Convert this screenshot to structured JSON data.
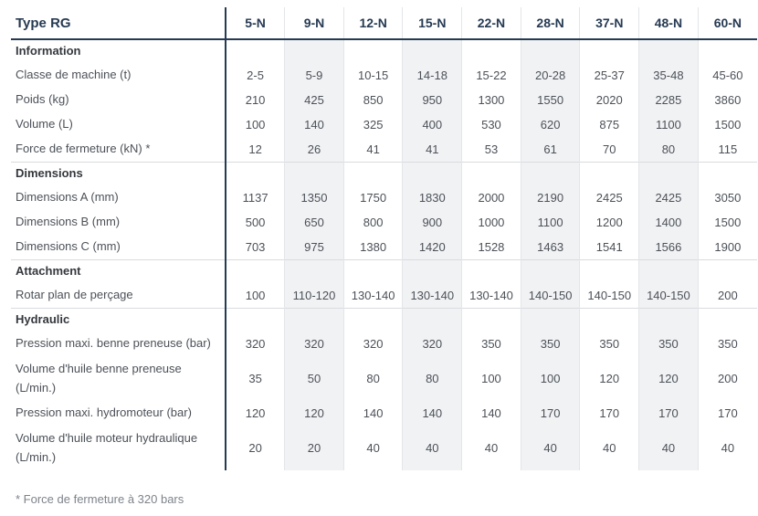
{
  "colors": {
    "accent_navy": "#263a53",
    "shaded_column_bg": "#f1f2f4",
    "body_text": "#4c5158",
    "footnote_text": "#7e838a"
  },
  "table": {
    "header": {
      "label": "Type RG",
      "columns": [
        "5-N",
        "9-N",
        "12-N",
        "15-N",
        "22-N",
        "28-N",
        "37-N",
        "48-N",
        "60-N"
      ]
    },
    "shaded_columns": [
      1,
      3,
      5,
      7
    ],
    "sections": [
      {
        "title": "Information",
        "rows": [
          {
            "label": "Classe de machine (t)",
            "values": [
              "2-5",
              "5-9",
              "10-15",
              "14-18",
              "15-22",
              "20-28",
              "25-37",
              "35-48",
              "45-60"
            ]
          },
          {
            "label": "Poids (kg)",
            "values": [
              "210",
              "425",
              "850",
              "950",
              "1300",
              "1550",
              "2020",
              "2285",
              "3860"
            ]
          },
          {
            "label": "Volume (L)",
            "values": [
              "100",
              "140",
              "325",
              "400",
              "530",
              "620",
              "875",
              "1100",
              "1500"
            ]
          },
          {
            "label": "Force de fermeture (kN) *",
            "values": [
              "12",
              "26",
              "41",
              "41",
              "53",
              "61",
              "70",
              "80",
              "115"
            ]
          }
        ]
      },
      {
        "title": "Dimensions",
        "rows": [
          {
            "label": "Dimensions A (mm)",
            "values": [
              "1137",
              "1350",
              "1750",
              "1830",
              "2000",
              "2190",
              "2425",
              "2425",
              "3050"
            ]
          },
          {
            "label": "Dimensions B (mm)",
            "values": [
              "500",
              "650",
              "800",
              "900",
              "1000",
              "1100",
              "1200",
              "1400",
              "1500"
            ]
          },
          {
            "label": "Dimensions C (mm)",
            "values": [
              "703",
              "975",
              "1380",
              "1420",
              "1528",
              "1463",
              "1541",
              "1566",
              "1900"
            ]
          }
        ]
      },
      {
        "title": "Attachment",
        "rows": [
          {
            "label": "Rotar plan de perçage",
            "values": [
              "100",
              "110-120",
              "130-140",
              "130-140",
              "130-140",
              "140-150",
              "140-150",
              "140-150",
              "200"
            ]
          }
        ]
      },
      {
        "title": "Hydraulic",
        "rows": [
          {
            "label": "Pression maxi. benne preneuse (bar)",
            "values": [
              "320",
              "320",
              "320",
              "320",
              "350",
              "350",
              "350",
              "350",
              "350"
            ]
          },
          {
            "label": "Volume d'huile benne preneuse\n(L/min.)",
            "values": [
              "35",
              "50",
              "80",
              "80",
              "100",
              "100",
              "120",
              "120",
              "200"
            ]
          },
          {
            "label": "Pression maxi. hydromoteur (bar)",
            "values": [
              "120",
              "120",
              "140",
              "140",
              "140",
              "170",
              "170",
              "170",
              "170"
            ]
          },
          {
            "label": "Volume d'huile moteur hydraulique\n(L/min.)",
            "values": [
              "20",
              "20",
              "40",
              "40",
              "40",
              "40",
              "40",
              "40",
              "40"
            ]
          }
        ]
      }
    ]
  },
  "footnote": "* Force de fermeture à 320 bars"
}
